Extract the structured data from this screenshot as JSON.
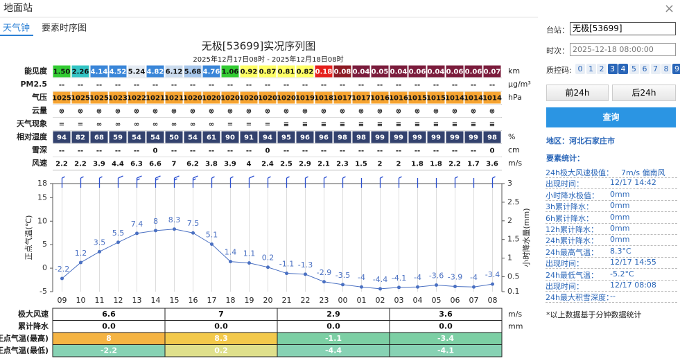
{
  "window": {
    "title": "地面站"
  },
  "tabs": [
    "天气钟",
    "要素时序图"
  ],
  "hourly_table": {
    "rows": [
      {
        "label": "能见度",
        "unit": "km",
        "cells": [
          "1.50",
          "2.26",
          "4.14",
          "4.52",
          "5.24",
          "4.82",
          "6.12",
          "5.68",
          "4.76",
          "1.06",
          "0.92",
          "0.87",
          "0.81",
          "0.82",
          "0.18",
          "0.08",
          "0.04",
          "0.05",
          "0.04",
          "0.06",
          "0.04",
          "0.06",
          "0.06",
          "0.07"
        ],
        "colors": [
          "#33cc33",
          "#33c4c4",
          "#3a86d8",
          "#3a86d8",
          "#e4ebf3",
          "#3a86d8",
          "#ccdcee",
          "#a9c8ec",
          "#3a86d8",
          "#33cc33",
          "#ffff66",
          "#ffff66",
          "#ffff66",
          "#ffff66",
          "#e5201c",
          "#8e1b24",
          "#7b1c3c",
          "#7b1c3c",
          "#7b1c3c",
          "#7b1c3c",
          "#7b1c3c",
          "#7b1c3c",
          "#7b1c3c",
          "#7b1c3c"
        ]
      },
      {
        "label": "PM2.5",
        "unit": "μg/m³",
        "color": "#ffffff",
        "cells": [
          "--",
          "--",
          "--",
          "--",
          "--",
          "--",
          "--",
          "--",
          "--",
          "--",
          "--",
          "--",
          "--",
          "--",
          "--",
          "--",
          "--",
          "--",
          "--",
          "--",
          "--",
          "--",
          "--",
          "--"
        ]
      },
      {
        "label": "气压",
        "unit": "hPa",
        "color": "#f6a431",
        "cells": [
          1025,
          1025,
          1025,
          1023,
          1022,
          1021,
          1021,
          1020,
          1020,
          1020,
          1020,
          1020,
          1020,
          1019,
          1018,
          1017,
          1017,
          1016,
          1016,
          1015,
          1015,
          1014,
          1014,
          1014
        ]
      },
      {
        "label": "云量",
        "color": "#ffffff",
        "cells": [
          "⊗",
          "⊗",
          "⊗",
          "⊗",
          "⊗",
          "⊗",
          "⊗",
          "⊗",
          "⊗",
          "⊗",
          "⊗",
          "⊗",
          "⊗",
          "⊗",
          "⊗",
          "⊗",
          "⊗",
          "⊗",
          "⊗",
          "⊗",
          "⊗",
          "⊗",
          "⊗",
          "⊗"
        ]
      },
      {
        "label": "天气现象",
        "color": "#ffffff",
        "cells": [
          "=",
          "=",
          "∞",
          "∞",
          "∞",
          "∞",
          "∞",
          "∞",
          "∞",
          "=",
          "=",
          "=",
          "≡",
          "≡",
          "≡",
          "≡",
          "≡",
          "≡",
          "≡",
          "≡",
          "≡",
          "≡",
          "≡",
          "≡"
        ]
      },
      {
        "label": "相对湿度",
        "unit": "%",
        "color": "#33426e",
        "cells": [
          94,
          82,
          68,
          59,
          54,
          54,
          50,
          54,
          61,
          90,
          91,
          94,
          95,
          96,
          96,
          98,
          98,
          99,
          99,
          99,
          99,
          99,
          99,
          98
        ]
      },
      {
        "label": "雪深",
        "unit": "cm",
        "color": "#ffffff",
        "cells": [
          "--",
          "--",
          "--",
          "--",
          "--",
          0,
          "--",
          "--",
          "--",
          "--",
          "--",
          0,
          "--",
          "--",
          "--",
          "--",
          "--",
          "--",
          "--",
          "--",
          "--",
          "--",
          "--",
          0
        ]
      },
      {
        "label": "风速",
        "unit": "m/s",
        "color": "#ffffff",
        "cells": [
          2.2,
          2.2,
          3.9,
          4.4,
          6.3,
          6.6,
          7,
          6.2,
          3.8,
          3.9,
          4,
          2.4,
          2.5,
          2.9,
          2.1,
          2.3,
          1.5,
          2,
          2,
          1.8,
          1.8,
          2.2,
          1.7,
          3.6
        ]
      }
    ]
  },
  "chart_data": {
    "type": "line",
    "title": "无极[53699]实况序列图",
    "subtitle": "2025年12月17日08时 - 2025年12月18日08时",
    "categories": [
      "09",
      "10",
      "11",
      "12",
      "13",
      "14",
      "15",
      "16",
      "17",
      "18",
      "19",
      "20",
      "21",
      "22",
      "23",
      "00",
      "01",
      "02",
      "03",
      "04",
      "05",
      "06",
      "07",
      "08"
    ],
    "values": [
      -2.2,
      1.2,
      3.5,
      5.5,
      7.4,
      8,
      8.3,
      7.5,
      5.1,
      1.4,
      1.1,
      0.2,
      -1.1,
      -1.3,
      -2.9,
      -3.5,
      -4,
      -4.4,
      -4.1,
      -4,
      -3.6,
      -3.9,
      -4,
      -3.4
    ],
    "color": "#4a70c2",
    "ylabel": "正点气温(℃)",
    "y2label": "小时降水量(mm)",
    "ylim": [
      -5,
      18
    ],
    "yticks": [
      -5,
      0,
      5,
      10,
      15,
      18
    ],
    "y2lim": [
      0.1,
      3
    ],
    "y2ticks": [
      0.1,
      0.5,
      1,
      1.5,
      2,
      2.5,
      3
    ],
    "grid": true
  },
  "summary_table": {
    "rows": [
      {
        "label": "极大风速",
        "unit": "m/s",
        "cells": [
          6.6,
          7,
          2.9,
          3.6
        ],
        "colors": [
          "#ffffff",
          "#ffffff",
          "#ffffff",
          "#ffffff"
        ]
      },
      {
        "label": "累计降水",
        "unit": "mm",
        "cells": [
          "0.0",
          "0.0",
          "0.0",
          "0.0"
        ],
        "colors": [
          "#ffffff",
          "#ffffff",
          "#ffffff",
          "#ffffff"
        ]
      },
      {
        "label": "正点气温(最高)",
        "cells": [
          8,
          8.3,
          -1.1,
          -3.4
        ],
        "colors": [
          "#f5b443",
          "#f3c94b",
          "#7ccfa4",
          "#7ccfa4"
        ]
      },
      {
        "label": "正点气温(最低)",
        "cells": [
          -2.2,
          0.2,
          -4.4,
          -4.1
        ],
        "colors": [
          "#87d2b4",
          "#dfe08c",
          "#87d2b4",
          "#87d2b4"
        ]
      }
    ]
  },
  "panel": {
    "station_label": "台站：",
    "station": "无极[53699]",
    "time_label": "时次：",
    "time": "2025-12-18 08:00:00",
    "qc_label": "质控码:",
    "qc_codes": [
      0,
      1,
      2,
      3,
      4,
      5,
      6,
      7,
      8,
      9
    ],
    "qc_selected": [
      false,
      false,
      false,
      true,
      true,
      false,
      false,
      false,
      false,
      true
    ],
    "prev": "前24h",
    "next": "后24h",
    "query": "查询",
    "region": "地区：河北石家庄市",
    "stats_title": "要素统计：",
    "stats": [
      {
        "label": "24h极大风速极值：",
        "value": "7m/s 偏南风"
      },
      {
        "label": "出现时间：",
        "value": "12/17 14:42"
      },
      {
        "label": "小时降水极值：",
        "value": "0mm"
      },
      {
        "label": "3h累计降水：",
        "value": "0mm"
      },
      {
        "label": "6h累计降水：",
        "value": "0mm"
      },
      {
        "label": "12h累计降水：",
        "value": "0mm"
      },
      {
        "label": "24h累计降水：",
        "value": "0mm"
      },
      {
        "label": "24h最高气温：",
        "value": "8.3°C"
      },
      {
        "label": "出现时间：",
        "value": "12/17 14:55"
      },
      {
        "label": "24h最低气温：",
        "value": "-5.2°C"
      },
      {
        "label": "出现时间：",
        "value": "12/17 08:08"
      },
      {
        "label": "24h最大积雪深度：",
        "value": "--"
      }
    ],
    "footnote": "*以上数据基于分钟数据统计"
  }
}
